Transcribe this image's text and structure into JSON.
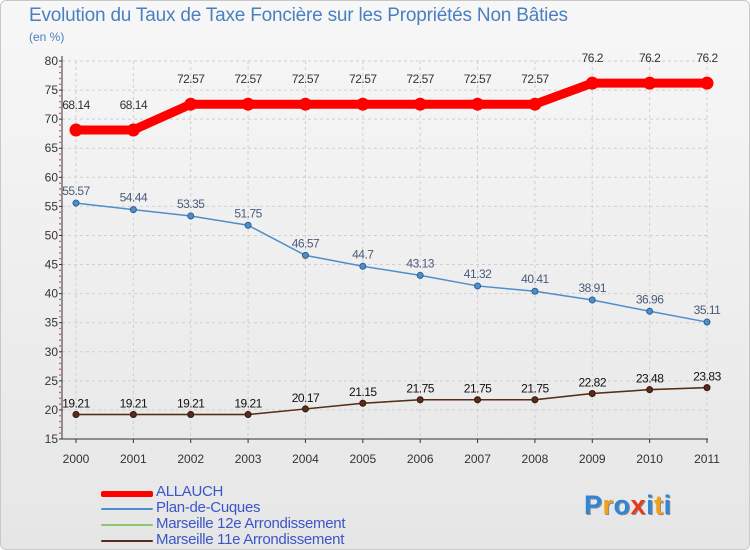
{
  "chart_data": {
    "type": "line",
    "title": "Evolution du Taux de Taxe Foncière sur les Propriétés Non Bâties",
    "ylabel": "(en %)",
    "xlabel": "",
    "x": [
      "2000",
      "2001",
      "2002",
      "2003",
      "2004",
      "2005",
      "2006",
      "2007",
      "2008",
      "2009",
      "2010",
      "2011"
    ],
    "ylim": [
      15,
      80
    ],
    "yticks": [
      15,
      20,
      25,
      30,
      35,
      40,
      45,
      50,
      55,
      60,
      65,
      70,
      75,
      80
    ],
    "grid": "dashed",
    "legend_position": "bottom-left",
    "series": [
      {
        "name": "ALLAUCH",
        "color": "#ff0000",
        "values": [
          68.14,
          68.14,
          72.57,
          72.57,
          72.57,
          72.57,
          72.57,
          72.57,
          72.57,
          76.2,
          76.2,
          76.2
        ],
        "labels": [
          "68.14",
          "68.14",
          "72.57",
          "72.57",
          "72.57",
          "72.57",
          "72.57",
          "72.57",
          "72.57",
          "76.2",
          "76.2",
          "76.2"
        ]
      },
      {
        "name": "Plan-de-Cuques",
        "color": "#4f8ec9",
        "values": [
          55.57,
          54.44,
          53.35,
          51.75,
          46.57,
          44.7,
          43.13,
          41.32,
          40.41,
          38.91,
          36.96,
          35.11
        ],
        "labels": [
          "55.57",
          "54.44",
          "53.35",
          "51.75",
          "46.57",
          "44.7",
          "43.13",
          "41.32",
          "40.41",
          "38.91",
          "36.96",
          "35.11"
        ]
      },
      {
        "name": "Marseille 12e  Arrondissement",
        "color": "#88c86a",
        "values": [
          19.21,
          19.21,
          19.21,
          19.21,
          20.17,
          21.15,
          21.75,
          21.75,
          21.75,
          22.82,
          23.48,
          23.83
        ],
        "labels": []
      },
      {
        "name": "Marseille 11e  Arrondissement",
        "color": "#5a2a1a",
        "values": [
          19.21,
          19.21,
          19.21,
          19.21,
          20.17,
          21.15,
          21.75,
          21.75,
          21.75,
          22.82,
          23.48,
          23.83
        ],
        "labels": [
          "19.21",
          "19.21",
          "19.21",
          "19.21",
          "20.17",
          "21.15",
          "21.75",
          "21.75",
          "21.75",
          "22.82",
          "23.48",
          "23.83"
        ]
      }
    ]
  },
  "logo": {
    "letters": [
      "P",
      "r",
      "o",
      "x",
      "i",
      "t",
      "i"
    ],
    "colors": [
      "#2f86d8",
      "#f0a020",
      "#2f86d8",
      "#e83a1a",
      "#2f86d8",
      "#f0a020",
      "#2f86d8"
    ]
  }
}
